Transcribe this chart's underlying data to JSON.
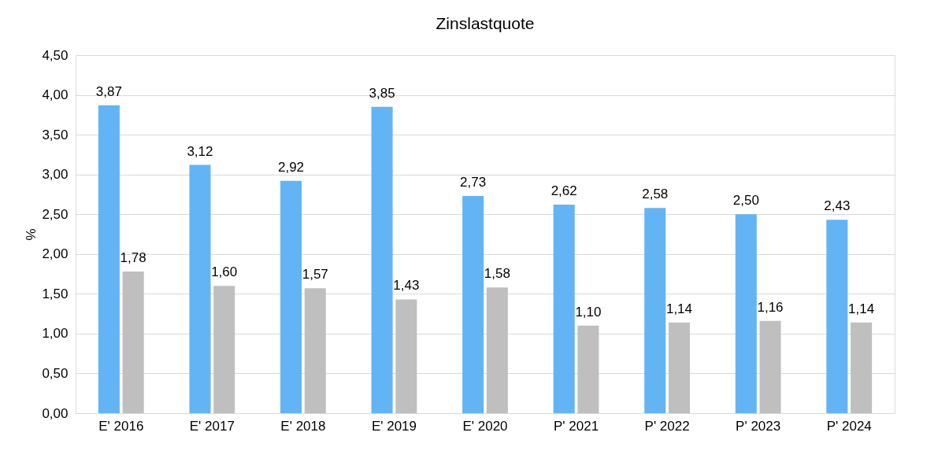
{
  "chart_data": {
    "type": "bar",
    "title": "Zinslastquote",
    "ylabel": "%",
    "categories": [
      "E' 2016",
      "E' 2017",
      "E' 2018",
      "E' 2019",
      "E' 2020",
      "P' 2021",
      "P' 2022",
      "P' 2023",
      "P' 2024"
    ],
    "series": [
      {
        "color": "#63b4f5",
        "values": [
          3.87,
          3.12,
          2.92,
          3.85,
          2.73,
          2.62,
          2.58,
          2.5,
          2.43
        ],
        "value_labels": [
          "3,87",
          "3,12",
          "2,92",
          "3,85",
          "2,73",
          "2,62",
          "2,58",
          "2,50",
          "2,43"
        ]
      },
      {
        "color": "#bfbfbf",
        "values": [
          1.78,
          1.6,
          1.57,
          1.43,
          1.58,
          1.1,
          1.14,
          1.16,
          1.14
        ],
        "value_labels": [
          "1,78",
          "1,60",
          "1,57",
          "1,43",
          "1,58",
          "1,10",
          "1,14",
          "1,16",
          "1,14"
        ]
      }
    ],
    "ylim": [
      0,
      4.5
    ],
    "yticks": [
      {
        "value": 0,
        "label": "0,00"
      },
      {
        "value": 0.5,
        "label": "0,50"
      },
      {
        "value": 1,
        "label": "1,00"
      },
      {
        "value": 1.5,
        "label": "1,50"
      },
      {
        "value": 2,
        "label": "2,00"
      },
      {
        "value": 2.5,
        "label": "2,50"
      },
      {
        "value": 3,
        "label": "3,00"
      },
      {
        "value": 3.5,
        "label": "3,50"
      },
      {
        "value": 4,
        "label": "4,00"
      },
      {
        "value": 4.5,
        "label": "4,50"
      }
    ],
    "grid": "y",
    "legend": false
  }
}
